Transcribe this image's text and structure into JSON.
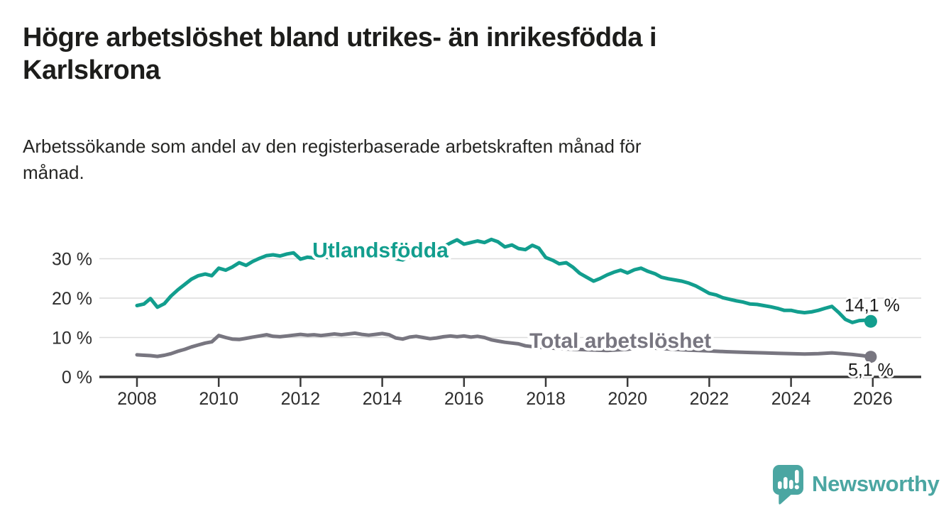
{
  "header": {
    "title_line1": "Högre arbetslöshet bland utrikes- än inrikesfödda i",
    "title_line2": "Karlskrona",
    "subtitle_line1": "Arbetssökande som andel av den registerbaserade arbetskraften månad för",
    "subtitle_line2": "månad."
  },
  "footer": {
    "brand": "Newsworthy",
    "logo_icon": "speech-bubble-bar-chart-icon",
    "brand_color": "#4ba6a2"
  },
  "chart_data": {
    "type": "line",
    "title": "Högre arbetslöshet bland utrikes- än inrikesfödda i Karlskrona",
    "subtitle": "Arbetssökande som andel av den registerbaserade arbetskraften månad för månad.",
    "unit": "%",
    "grid": true,
    "colors": {
      "utlandsfodda": "#129e8e",
      "total": "#787680",
      "axis": "#3a3a3a",
      "gridline": "#dcdcdc",
      "tick_label": "#2d2d2d",
      "value_label": "#1a1a1a"
    },
    "x_axis": {
      "ticks": [
        2008,
        2010,
        2012,
        2014,
        2016,
        2018,
        2020,
        2022,
        2024,
        2026
      ]
    },
    "y_axis": {
      "ticks": [
        0,
        10,
        20,
        30
      ],
      "suffix": " %",
      "range": [
        0,
        36
      ]
    },
    "series": [
      {
        "name": "Utlandsfödda",
        "color": "#129e8e",
        "label_at": [
          2012.29,
          30.4
        ],
        "end_label": "14,1 %",
        "end_label_offset": [
          2,
          -14
        ],
        "end_value": 14.1,
        "points": [
          [
            2008.0,
            18.1
          ],
          [
            2008.17,
            18.5
          ],
          [
            2008.33,
            19.9
          ],
          [
            2008.5,
            17.7
          ],
          [
            2008.67,
            18.6
          ],
          [
            2008.83,
            20.5
          ],
          [
            2009.0,
            22.1
          ],
          [
            2009.17,
            23.5
          ],
          [
            2009.33,
            24.8
          ],
          [
            2009.5,
            25.7
          ],
          [
            2009.67,
            26.1
          ],
          [
            2009.83,
            25.7
          ],
          [
            2010.0,
            27.6
          ],
          [
            2010.17,
            27.1
          ],
          [
            2010.33,
            27.9
          ],
          [
            2010.5,
            29.0
          ],
          [
            2010.67,
            28.3
          ],
          [
            2010.83,
            29.3
          ],
          [
            2011.0,
            30.1
          ],
          [
            2011.17,
            30.8
          ],
          [
            2011.33,
            31.0
          ],
          [
            2011.5,
            30.7
          ],
          [
            2011.67,
            31.2
          ],
          [
            2011.83,
            31.5
          ],
          [
            2012.0,
            29.9
          ],
          [
            2012.17,
            30.4
          ],
          [
            2012.33,
            30.2
          ],
          [
            2012.5,
            30.6
          ],
          [
            2012.67,
            30.3
          ],
          [
            2012.83,
            30.9
          ],
          [
            2013.0,
            31.1
          ],
          [
            2013.17,
            30.7
          ],
          [
            2013.33,
            31.0
          ],
          [
            2013.5,
            31.3
          ],
          [
            2013.67,
            30.9
          ],
          [
            2013.83,
            31.2
          ],
          [
            2014.0,
            31.4
          ],
          [
            2014.17,
            31.0
          ],
          [
            2014.33,
            30.0
          ],
          [
            2014.5,
            29.7
          ],
          [
            2014.67,
            30.6
          ],
          [
            2014.83,
            31.1
          ],
          [
            2015.0,
            31.5
          ],
          [
            2015.17,
            31.9
          ],
          [
            2015.33,
            32.4
          ],
          [
            2015.5,
            33.1
          ],
          [
            2015.67,
            34.0
          ],
          [
            2015.83,
            34.8
          ],
          [
            2016.0,
            33.7
          ],
          [
            2016.17,
            34.1
          ],
          [
            2016.33,
            34.5
          ],
          [
            2016.5,
            34.1
          ],
          [
            2016.67,
            34.9
          ],
          [
            2016.83,
            34.3
          ],
          [
            2017.0,
            33.0
          ],
          [
            2017.17,
            33.5
          ],
          [
            2017.33,
            32.6
          ],
          [
            2017.5,
            32.3
          ],
          [
            2017.67,
            33.4
          ],
          [
            2017.83,
            32.7
          ],
          [
            2018.0,
            30.3
          ],
          [
            2018.17,
            29.6
          ],
          [
            2018.33,
            28.7
          ],
          [
            2018.5,
            29.0
          ],
          [
            2018.67,
            27.8
          ],
          [
            2018.83,
            26.3
          ],
          [
            2019.0,
            25.3
          ],
          [
            2019.17,
            24.3
          ],
          [
            2019.33,
            25.0
          ],
          [
            2019.5,
            25.9
          ],
          [
            2019.67,
            26.6
          ],
          [
            2019.83,
            27.1
          ],
          [
            2020.0,
            26.4
          ],
          [
            2020.17,
            27.2
          ],
          [
            2020.33,
            27.6
          ],
          [
            2020.5,
            26.8
          ],
          [
            2020.67,
            26.2
          ],
          [
            2020.83,
            25.3
          ],
          [
            2021.0,
            24.9
          ],
          [
            2021.17,
            24.6
          ],
          [
            2021.33,
            24.3
          ],
          [
            2021.5,
            23.8
          ],
          [
            2021.67,
            23.1
          ],
          [
            2021.83,
            22.2
          ],
          [
            2022.0,
            21.2
          ],
          [
            2022.17,
            20.8
          ],
          [
            2022.33,
            20.1
          ],
          [
            2022.5,
            19.7
          ],
          [
            2022.67,
            19.3
          ],
          [
            2022.83,
            19.0
          ],
          [
            2023.0,
            18.5
          ],
          [
            2023.17,
            18.4
          ],
          [
            2023.33,
            18.1
          ],
          [
            2023.5,
            17.8
          ],
          [
            2023.67,
            17.4
          ],
          [
            2023.83,
            16.9
          ],
          [
            2024.0,
            16.9
          ],
          [
            2024.17,
            16.5
          ],
          [
            2024.33,
            16.3
          ],
          [
            2024.5,
            16.5
          ],
          [
            2024.67,
            16.9
          ],
          [
            2024.83,
            17.4
          ],
          [
            2025.0,
            17.9
          ],
          [
            2025.17,
            16.3
          ],
          [
            2025.33,
            14.6
          ],
          [
            2025.5,
            13.8
          ],
          [
            2025.67,
            14.3
          ],
          [
            2025.83,
            14.4
          ],
          [
            2025.95,
            14.1
          ]
        ]
      },
      {
        "name": "Total arbetslöshet",
        "color": "#787680",
        "label_at": [
          2017.6,
          7.4
        ],
        "end_label": "5,1 %",
        "end_label_offset": [
          0,
          27
        ],
        "end_value": 5.1,
        "points": [
          [
            2008.0,
            5.6
          ],
          [
            2008.17,
            5.5
          ],
          [
            2008.33,
            5.4
          ],
          [
            2008.5,
            5.2
          ],
          [
            2008.67,
            5.5
          ],
          [
            2008.83,
            5.9
          ],
          [
            2009.0,
            6.5
          ],
          [
            2009.17,
            7.0
          ],
          [
            2009.33,
            7.6
          ],
          [
            2009.5,
            8.1
          ],
          [
            2009.67,
            8.6
          ],
          [
            2009.83,
            8.9
          ],
          [
            2010.0,
            10.5
          ],
          [
            2010.17,
            10.0
          ],
          [
            2010.33,
            9.6
          ],
          [
            2010.5,
            9.5
          ],
          [
            2010.67,
            9.8
          ],
          [
            2010.83,
            10.1
          ],
          [
            2011.0,
            10.4
          ],
          [
            2011.17,
            10.7
          ],
          [
            2011.33,
            10.3
          ],
          [
            2011.5,
            10.2
          ],
          [
            2011.67,
            10.4
          ],
          [
            2011.83,
            10.6
          ],
          [
            2012.0,
            10.8
          ],
          [
            2012.17,
            10.6
          ],
          [
            2012.33,
            10.7
          ],
          [
            2012.5,
            10.5
          ],
          [
            2012.67,
            10.7
          ],
          [
            2012.83,
            10.9
          ],
          [
            2013.0,
            10.7
          ],
          [
            2013.17,
            10.9
          ],
          [
            2013.33,
            11.1
          ],
          [
            2013.5,
            10.8
          ],
          [
            2013.67,
            10.6
          ],
          [
            2013.83,
            10.8
          ],
          [
            2014.0,
            11.0
          ],
          [
            2014.17,
            10.7
          ],
          [
            2014.33,
            9.9
          ],
          [
            2014.5,
            9.6
          ],
          [
            2014.67,
            10.1
          ],
          [
            2014.83,
            10.3
          ],
          [
            2015.0,
            10.0
          ],
          [
            2015.17,
            9.7
          ],
          [
            2015.33,
            9.9
          ],
          [
            2015.5,
            10.2
          ],
          [
            2015.67,
            10.4
          ],
          [
            2015.83,
            10.2
          ],
          [
            2016.0,
            10.4
          ],
          [
            2016.17,
            10.1
          ],
          [
            2016.33,
            10.3
          ],
          [
            2016.5,
            10.0
          ],
          [
            2016.67,
            9.4
          ],
          [
            2016.83,
            9.1
          ],
          [
            2017.0,
            8.8
          ],
          [
            2017.17,
            8.6
          ],
          [
            2017.33,
            8.4
          ],
          [
            2017.5,
            7.9
          ],
          [
            2017.67,
            7.7
          ],
          [
            2018.0,
            7.4
          ],
          [
            2018.5,
            7.1
          ],
          [
            2019.0,
            6.9
          ],
          [
            2019.5,
            6.7
          ],
          [
            2020.0,
            7.0
          ],
          [
            2020.33,
            7.5
          ],
          [
            2020.67,
            7.3
          ],
          [
            2021.0,
            7.1
          ],
          [
            2021.5,
            6.8
          ],
          [
            2022.0,
            6.6
          ],
          [
            2022.42,
            6.4
          ],
          [
            2022.67,
            6.3
          ],
          [
            2023.0,
            6.2
          ],
          [
            2023.33,
            6.1
          ],
          [
            2023.67,
            6.0
          ],
          [
            2024.0,
            5.9
          ],
          [
            2024.33,
            5.8
          ],
          [
            2024.67,
            5.9
          ],
          [
            2025.0,
            6.1
          ],
          [
            2025.25,
            5.9
          ],
          [
            2025.5,
            5.7
          ],
          [
            2025.75,
            5.4
          ],
          [
            2025.95,
            5.1
          ]
        ]
      }
    ]
  }
}
